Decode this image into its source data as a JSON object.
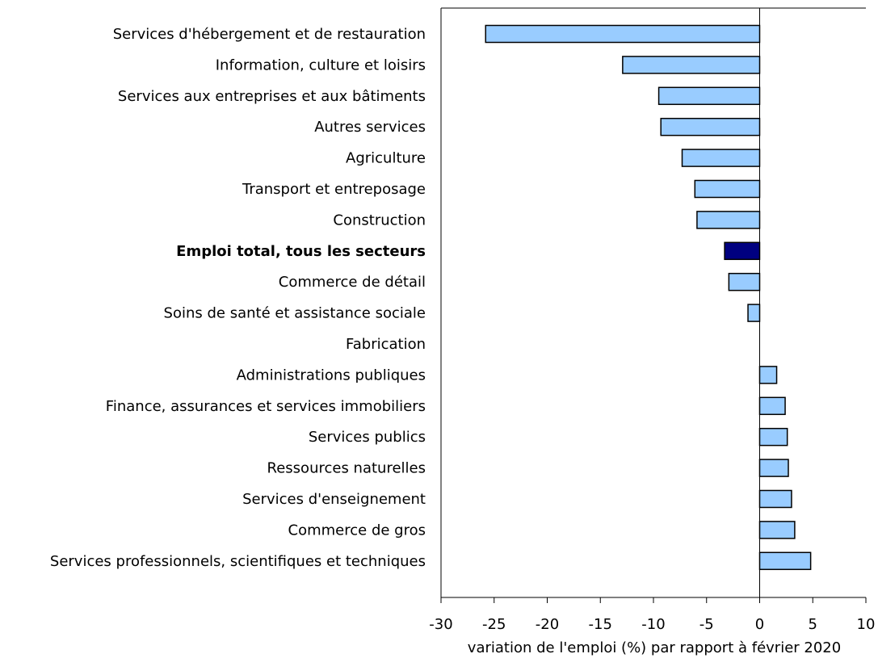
{
  "chart_data": {
    "type": "bar",
    "orientation": "horizontal",
    "categories": [
      "Services d'hébergement et de restauration",
      "Information, culture et loisirs",
      "Services aux entreprises et aux bâtiments",
      "Autres services",
      "Agriculture",
      "Transport et entreposage",
      "Construction",
      "Emploi total, tous les secteurs",
      "Commerce de détail",
      "Soins de santé et assistance sociale",
      "Fabrication",
      "Administrations publiques",
      "Finance, assurances et services immobiliers",
      "Services publics",
      "Ressources naturelles",
      "Services d'enseignement",
      "Commerce de gros",
      "Services professionnels, scientifiques et techniques"
    ],
    "values": [
      -25.8,
      -12.9,
      -9.5,
      -9.3,
      -7.3,
      -6.1,
      -5.9,
      -3.3,
      -2.9,
      -1.1,
      0.0,
      1.6,
      2.4,
      2.6,
      2.7,
      3.0,
      3.3,
      4.8
    ],
    "highlight_index": 7,
    "colors": {
      "bar": "#99ccff",
      "highlight": "#000080",
      "stroke": "#000000"
    },
    "title": "",
    "xlabel": "variation de l'emploi (%) par rapport à février 2020",
    "ylabel": "",
    "xlim": [
      -30,
      10
    ],
    "xticks": [
      -30,
      -25,
      -20,
      -15,
      -10,
      -5,
      0,
      5,
      10
    ],
    "xtick_labels": [
      "-30",
      "-25",
      "-20",
      "-15",
      "-10",
      "-5",
      "0",
      "5",
      "10"
    ],
    "grid": false,
    "legend": "none"
  }
}
